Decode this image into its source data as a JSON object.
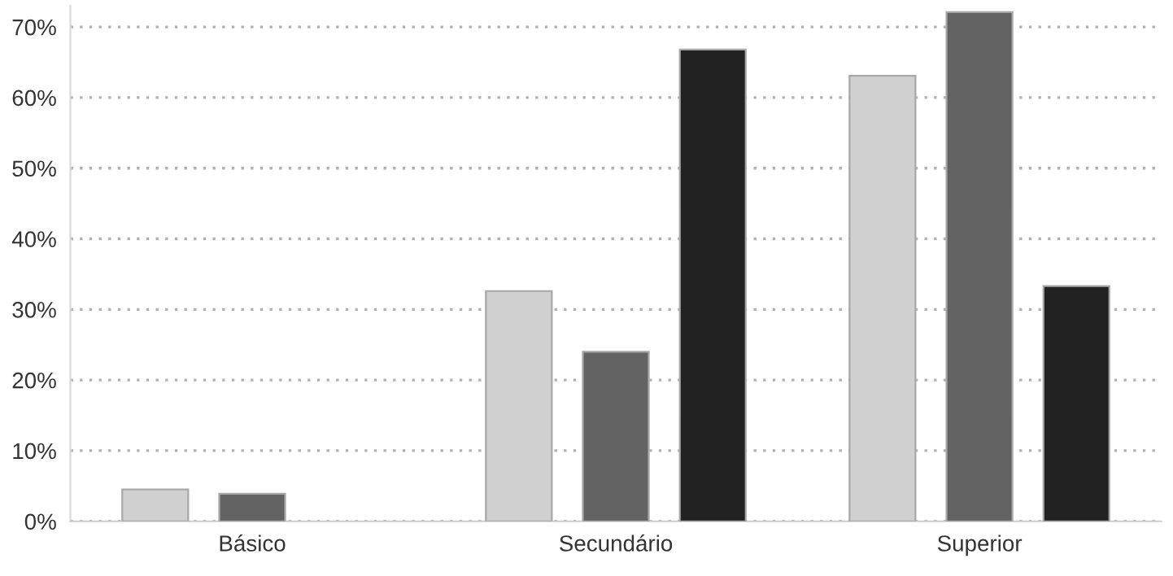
{
  "chart_data": {
    "type": "bar",
    "categories": [
      "Básico",
      "Secundário",
      "Superior"
    ],
    "series": [
      {
        "color": "#d0d0d0",
        "values": [
          4.5,
          32.6,
          63.1
        ]
      },
      {
        "color": "#636363",
        "values": [
          3.9,
          24.0,
          72.1
        ]
      },
      {
        "color": "#222222",
        "values": [
          null,
          66.8,
          33.3
        ]
      }
    ],
    "ylim": [
      0,
      73
    ],
    "yticks": [
      {
        "value": 0,
        "label": "0%"
      },
      {
        "value": 10,
        "label": "10%"
      },
      {
        "value": 20,
        "label": "20%"
      },
      {
        "value": 30,
        "label": "30%"
      },
      {
        "value": 40,
        "label": "40%"
      },
      {
        "value": 50,
        "label": "50%"
      },
      {
        "value": 60,
        "label": "60%"
      },
      {
        "value": 70,
        "label": "70%"
      }
    ],
    "grid": "y"
  }
}
